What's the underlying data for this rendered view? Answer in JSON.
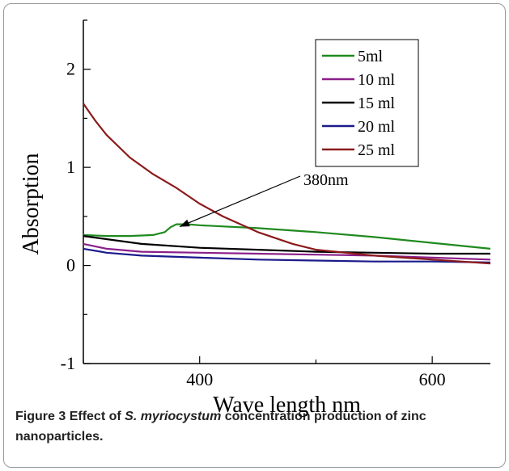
{
  "caption": {
    "label": "Figure 3",
    "text_before": "Effect of ",
    "italic": "S. myriocystum",
    "text_after": " concentration production of zinc nanoparticles."
  },
  "chart_data": {
    "type": "line",
    "xlabel": "Wave length nm",
    "ylabel": "Absorption",
    "xlim": [
      300,
      650
    ],
    "ylim": [
      -1,
      2.5
    ],
    "xticks": [
      400,
      600
    ],
    "yticks": [
      -1,
      0,
      1,
      2
    ],
    "grid": false,
    "legend_position": "top-right",
    "annotation": {
      "text": "380nm",
      "points_to": [
        380,
        0.42
      ]
    },
    "series": [
      {
        "name": "5ml",
        "color": "#1f8a1f",
        "x": [
          300,
          320,
          340,
          360,
          370,
          375,
          380,
          390,
          400,
          450,
          500,
          550,
          600,
          650
        ],
        "y": [
          0.31,
          0.3,
          0.3,
          0.31,
          0.34,
          0.39,
          0.42,
          0.42,
          0.41,
          0.38,
          0.34,
          0.29,
          0.23,
          0.17
        ]
      },
      {
        "name": "10 ml",
        "color": "#8a1f8a",
        "x": [
          300,
          320,
          350,
          400,
          450,
          500,
          550,
          600,
          650
        ],
        "y": [
          0.22,
          0.17,
          0.14,
          0.13,
          0.12,
          0.11,
          0.1,
          0.08,
          0.06
        ]
      },
      {
        "name": "15 ml",
        "color": "#000000",
        "x": [
          300,
          350,
          400,
          450,
          500,
          550,
          600,
          650
        ],
        "y": [
          0.3,
          0.22,
          0.18,
          0.16,
          0.14,
          0.13,
          0.12,
          0.12
        ]
      },
      {
        "name": "20 ml",
        "color": "#1a1a8c",
        "x": [
          300,
          320,
          350,
          400,
          450,
          500,
          550,
          600,
          650
        ],
        "y": [
          0.17,
          0.13,
          0.1,
          0.08,
          0.06,
          0.05,
          0.04,
          0.04,
          0.03
        ]
      },
      {
        "name": "25 ml",
        "color": "#8b1a1a",
        "x": [
          300,
          310,
          320,
          340,
          360,
          380,
          400,
          420,
          450,
          480,
          500,
          550,
          600,
          650
        ],
        "y": [
          1.65,
          1.48,
          1.33,
          1.1,
          0.93,
          0.79,
          0.63,
          0.5,
          0.34,
          0.22,
          0.16,
          0.1,
          0.06,
          0.02
        ]
      }
    ]
  }
}
